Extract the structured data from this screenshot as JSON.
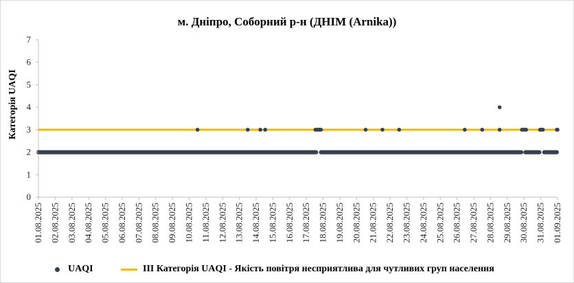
{
  "chart_data": {
    "type": "scatter",
    "title": "м. Дніпро, Соборний р-н (ДНІМ (Arnika))",
    "xlabel": "",
    "ylabel": "Категорія UAQI",
    "ylim": [
      0,
      7
    ],
    "yticks": [
      "0",
      "1",
      "2",
      "3",
      "4",
      "5",
      "6",
      "7"
    ],
    "xlim": [
      "2025-08-01",
      "2025-09-01"
    ],
    "xticks": [
      "01.08.2025",
      "02.08.2025",
      "03.08.2025",
      "04.08.2025",
      "05.08.2025",
      "06.08.2025",
      "07.08.2025",
      "08.08.2025",
      "09.08.2025",
      "10.08.2025",
      "11.08.2025",
      "12.08.2025",
      "13.08.2025",
      "14.08.2025",
      "15.08.2025",
      "16.08.2025",
      "17.08.2025",
      "18.08.2025",
      "19.08.2025",
      "20.08.2025",
      "21.08.2025",
      "22.08.2025",
      "23.08.2025",
      "24.08.2025",
      "25.08.2025",
      "26.08.2025",
      "27.08.2025",
      "28.08.2025",
      "29.08.2025",
      "30.08.2025",
      "31.08.2025",
      "01.09.2025"
    ],
    "grid": false,
    "legend_position": "bottom",
    "series": [
      {
        "name": "UAQI",
        "type": "scatter",
        "color": "#37404c",
        "segments_value_2": [
          [
            "2025-08-01T00:00",
            "2025-08-17T14:00"
          ],
          [
            "2025-08-17T21:00",
            "2025-08-29T20:00"
          ],
          [
            "2025-08-30T02:00",
            "2025-08-30T22:00"
          ],
          [
            "2025-08-31T05:00",
            "2025-08-31T23:00"
          ]
        ],
        "points": [
          {
            "x": "2025-08-10T12:00",
            "y": 3
          },
          {
            "x": "2025-08-13T12:00",
            "y": 3
          },
          {
            "x": "2025-08-14T06:00",
            "y": 3
          },
          {
            "x": "2025-08-14T13:00",
            "y": 3
          },
          {
            "x": "2025-08-17T13:00",
            "y": 3
          },
          {
            "x": "2025-08-17T15:00",
            "y": 3
          },
          {
            "x": "2025-08-17T17:00",
            "y": 3
          },
          {
            "x": "2025-08-17T19:00",
            "y": 3
          },
          {
            "x": "2025-08-17T21:00",
            "y": 3
          },
          {
            "x": "2025-08-20T13:00",
            "y": 3
          },
          {
            "x": "2025-08-21T13:00",
            "y": 3
          },
          {
            "x": "2025-08-22T13:00",
            "y": 3
          },
          {
            "x": "2025-08-26T11:00",
            "y": 3
          },
          {
            "x": "2025-08-27T12:00",
            "y": 3
          },
          {
            "x": "2025-08-28T13:00",
            "y": 3
          },
          {
            "x": "2025-08-28T13:00",
            "y": 4
          },
          {
            "x": "2025-08-29T21:00",
            "y": 3
          },
          {
            "x": "2025-08-29T23:00",
            "y": 3
          },
          {
            "x": "2025-08-30T01:00",
            "y": 3
          },
          {
            "x": "2025-08-30T03:00",
            "y": 3
          },
          {
            "x": "2025-08-30T23:00",
            "y": 3
          },
          {
            "x": "2025-08-31T01:00",
            "y": 3
          },
          {
            "x": "2025-08-31T03:00",
            "y": 3
          },
          {
            "x": "2025-08-31T23:00",
            "y": 3
          },
          {
            "x": "2025-09-01T00:00",
            "y": 3
          }
        ]
      },
      {
        "name": "ІІІ Категорія UAQI - Якість повітря несприятлива для чутливих груп населення",
        "type": "line",
        "color": "#f5b800",
        "y": 3
      }
    ]
  },
  "legend": {
    "uaqi": "UAQI",
    "category3": "ІІІ Категорія UAQI - Якість повітря несприятлива для чутливих груп населення"
  }
}
